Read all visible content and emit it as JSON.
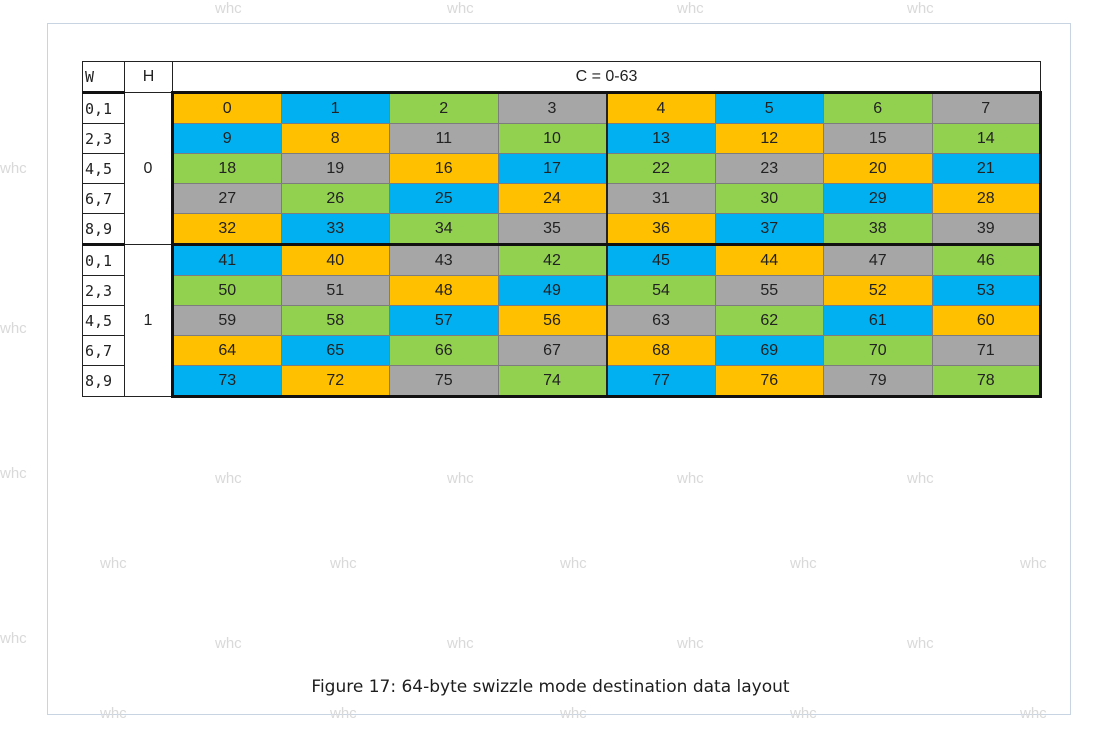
{
  "table": {
    "col_headers": {
      "w": "W",
      "h": "H",
      "c": "C = 0-63"
    },
    "colors": {
      "orange": "#ffc000",
      "blue": "#00b0f0",
      "green": "#92d050",
      "gray": "#a6a6a6"
    },
    "groups": [
      {
        "h": "0",
        "rows": [
          {
            "w": "0,1",
            "cells": [
              {
                "v": "0",
                "c": "orange"
              },
              {
                "v": "1",
                "c": "blue"
              },
              {
                "v": "2",
                "c": "green"
              },
              {
                "v": "3",
                "c": "gray"
              },
              {
                "v": "4",
                "c": "orange"
              },
              {
                "v": "5",
                "c": "blue"
              },
              {
                "v": "6",
                "c": "green"
              },
              {
                "v": "7",
                "c": "gray"
              }
            ]
          },
          {
            "w": "2,3",
            "cells": [
              {
                "v": "9",
                "c": "blue"
              },
              {
                "v": "8",
                "c": "orange"
              },
              {
                "v": "11",
                "c": "gray"
              },
              {
                "v": "10",
                "c": "green"
              },
              {
                "v": "13",
                "c": "blue"
              },
              {
                "v": "12",
                "c": "orange"
              },
              {
                "v": "15",
                "c": "gray"
              },
              {
                "v": "14",
                "c": "green"
              }
            ]
          },
          {
            "w": "4,5",
            "cells": [
              {
                "v": "18",
                "c": "green"
              },
              {
                "v": "19",
                "c": "gray"
              },
              {
                "v": "16",
                "c": "orange"
              },
              {
                "v": "17",
                "c": "blue"
              },
              {
                "v": "22",
                "c": "green"
              },
              {
                "v": "23",
                "c": "gray"
              },
              {
                "v": "20",
                "c": "orange"
              },
              {
                "v": "21",
                "c": "blue"
              }
            ]
          },
          {
            "w": "6,7",
            "cells": [
              {
                "v": "27",
                "c": "gray"
              },
              {
                "v": "26",
                "c": "green"
              },
              {
                "v": "25",
                "c": "blue"
              },
              {
                "v": "24",
                "c": "orange"
              },
              {
                "v": "31",
                "c": "gray"
              },
              {
                "v": "30",
                "c": "green"
              },
              {
                "v": "29",
                "c": "blue"
              },
              {
                "v": "28",
                "c": "orange"
              }
            ]
          },
          {
            "w": "8,9",
            "cells": [
              {
                "v": "32",
                "c": "orange"
              },
              {
                "v": "33",
                "c": "blue"
              },
              {
                "v": "34",
                "c": "green"
              },
              {
                "v": "35",
                "c": "gray"
              },
              {
                "v": "36",
                "c": "orange"
              },
              {
                "v": "37",
                "c": "blue"
              },
              {
                "v": "38",
                "c": "green"
              },
              {
                "v": "39",
                "c": "gray"
              }
            ]
          }
        ]
      },
      {
        "h": "1",
        "rows": [
          {
            "w": "0,1",
            "cells": [
              {
                "v": "41",
                "c": "blue"
              },
              {
                "v": "40",
                "c": "orange"
              },
              {
                "v": "43",
                "c": "gray"
              },
              {
                "v": "42",
                "c": "green"
              },
              {
                "v": "45",
                "c": "blue"
              },
              {
                "v": "44",
                "c": "orange"
              },
              {
                "v": "47",
                "c": "gray"
              },
              {
                "v": "46",
                "c": "green"
              }
            ]
          },
          {
            "w": "2,3",
            "cells": [
              {
                "v": "50",
                "c": "green"
              },
              {
                "v": "51",
                "c": "gray"
              },
              {
                "v": "48",
                "c": "orange"
              },
              {
                "v": "49",
                "c": "blue"
              },
              {
                "v": "54",
                "c": "green"
              },
              {
                "v": "55",
                "c": "gray"
              },
              {
                "v": "52",
                "c": "orange"
              },
              {
                "v": "53",
                "c": "blue"
              }
            ]
          },
          {
            "w": "4,5",
            "cells": [
              {
                "v": "59",
                "c": "gray"
              },
              {
                "v": "58",
                "c": "green"
              },
              {
                "v": "57",
                "c": "blue"
              },
              {
                "v": "56",
                "c": "orange"
              },
              {
                "v": "63",
                "c": "gray"
              },
              {
                "v": "62",
                "c": "green"
              },
              {
                "v": "61",
                "c": "blue"
              },
              {
                "v": "60",
                "c": "orange"
              }
            ]
          },
          {
            "w": "6,7",
            "cells": [
              {
                "v": "64",
                "c": "orange"
              },
              {
                "v": "65",
                "c": "blue"
              },
              {
                "v": "66",
                "c": "green"
              },
              {
                "v": "67",
                "c": "gray"
              },
              {
                "v": "68",
                "c": "orange"
              },
              {
                "v": "69",
                "c": "blue"
              },
              {
                "v": "70",
                "c": "green"
              },
              {
                "v": "71",
                "c": "gray"
              }
            ]
          },
          {
            "w": "8,9",
            "cells": [
              {
                "v": "73",
                "c": "blue"
              },
              {
                "v": "72",
                "c": "orange"
              },
              {
                "v": "75",
                "c": "gray"
              },
              {
                "v": "74",
                "c": "green"
              },
              {
                "v": "77",
                "c": "blue"
              },
              {
                "v": "76",
                "c": "orange"
              },
              {
                "v": "79",
                "c": "gray"
              },
              {
                "v": "78",
                "c": "green"
              }
            ]
          }
        ]
      }
    ]
  },
  "caption": "Figure 17: 64-byte swizzle mode destination data layout",
  "watermark": "whc"
}
